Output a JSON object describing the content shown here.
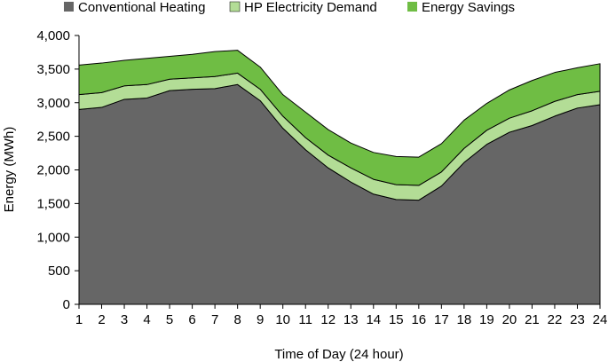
{
  "chart_data": {
    "type": "area",
    "stacked": true,
    "title": "",
    "xlabel": "Time of Day (24 hour)",
    "ylabel": "Energy (MWh)",
    "ylim": [
      0,
      4000
    ],
    "yticks": [
      "0",
      "500",
      "1,000",
      "1,500",
      "2,000",
      "2,500",
      "3,000",
      "3,500",
      "4,000"
    ],
    "ytick_values": [
      0,
      500,
      1000,
      1500,
      2000,
      2500,
      3000,
      3500,
      4000
    ],
    "x": [
      1,
      2,
      3,
      4,
      5,
      6,
      7,
      8,
      9,
      10,
      11,
      12,
      13,
      14,
      15,
      16,
      17,
      18,
      19,
      20,
      21,
      22,
      23,
      24
    ],
    "grid": false,
    "legend": "top",
    "series": [
      {
        "name": "Conventional Heating",
        "color": "#666666",
        "values": [
          2900,
          2930,
          3050,
          3070,
          3180,
          3200,
          3210,
          3270,
          3030,
          2620,
          2300,
          2030,
          1820,
          1640,
          1560,
          1550,
          1760,
          2110,
          2380,
          2560,
          2660,
          2800,
          2920,
          2970
        ]
      },
      {
        "name": "HP Electricity Demand",
        "color": "#b3dd96",
        "values": [
          220,
          220,
          200,
          200,
          170,
          170,
          180,
          170,
          170,
          180,
          180,
          190,
          210,
          220,
          220,
          220,
          210,
          210,
          210,
          210,
          220,
          220,
          200,
          200
        ]
      },
      {
        "name": "Energy Savings",
        "color": "#6fbd44",
        "values": [
          440,
          440,
          380,
          390,
          340,
          350,
          370,
          340,
          330,
          320,
          380,
          380,
          370,
          400,
          420,
          420,
          420,
          420,
          400,
          420,
          450,
          430,
          400,
          410
        ]
      }
    ]
  }
}
